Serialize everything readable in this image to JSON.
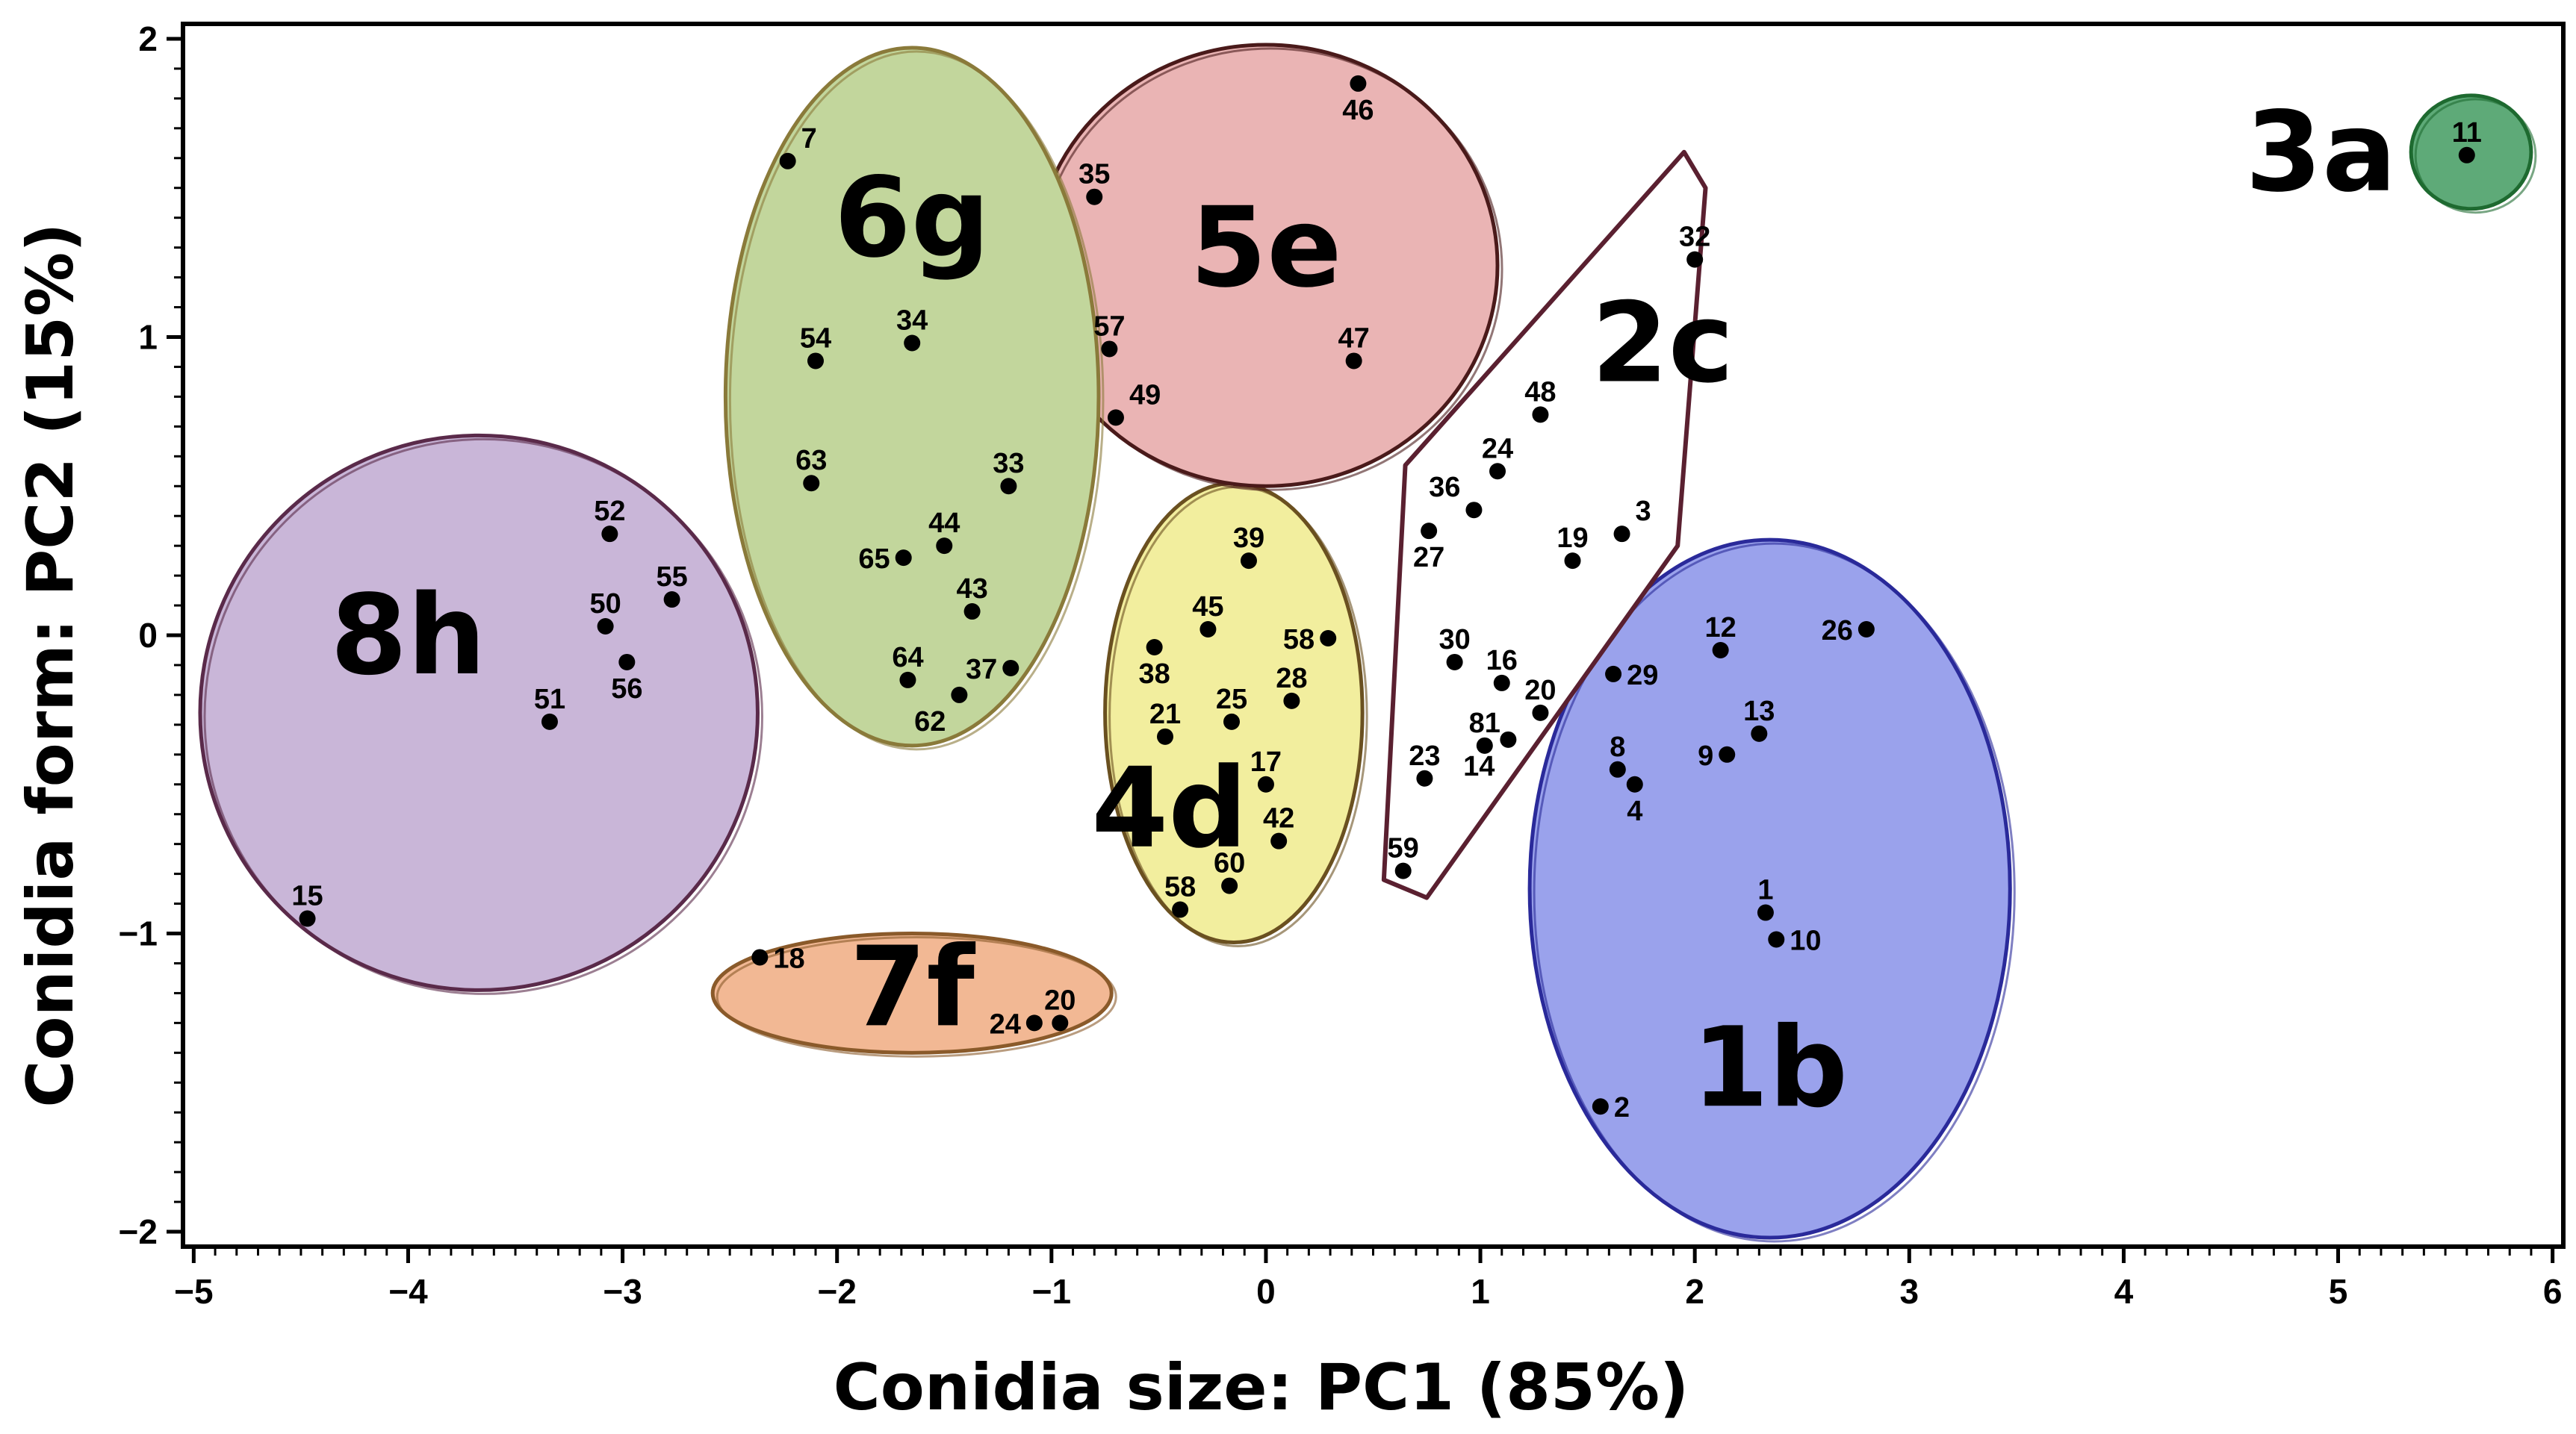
{
  "chart_data": {
    "type": "scatter",
    "title": "",
    "xlabel": "Conidia size: PC1 (85%)",
    "ylabel": "Conidia form: PC2 (15%)",
    "xlim": [
      -5.05,
      6.05
    ],
    "ylim": [
      -2.05,
      2.05
    ],
    "xticks": [
      -5,
      -4,
      -3,
      -2,
      -1,
      0,
      1,
      2,
      3,
      4,
      5,
      6
    ],
    "xtick_labels": [
      "−5",
      "−4",
      "−3",
      "−2",
      "−1",
      "0",
      "1",
      "2",
      "3",
      "4",
      "5",
      "6"
    ],
    "yticks": [
      -2,
      -1,
      0,
      1,
      2
    ],
    "ytick_labels": [
      "−2",
      "−1",
      "0",
      "1",
      "2"
    ],
    "grid": false,
    "groups": [
      {
        "name": "1b",
        "color": "#9aa2ec",
        "stroke": "#2a2a9a",
        "shape": "ellipse",
        "cx": 2.35,
        "cy": -0.85,
        "rx": 1.12,
        "ry": 1.17,
        "label_x": 2.35,
        "label_y": -1.45
      },
      {
        "name": "2c",
        "color": "#ffffff",
        "stroke": "#5a2030",
        "shape": "polygon",
        "vertices": [
          [
            0.65,
            0.57
          ],
          [
            1.95,
            1.62
          ],
          [
            2.05,
            1.5
          ],
          [
            1.92,
            0.3
          ],
          [
            0.75,
            -0.88
          ],
          [
            0.55,
            -0.82
          ]
        ],
        "label_x": 1.85,
        "label_y": 0.98
      },
      {
        "name": "3a",
        "color": "#5eaa78",
        "stroke": "#1e6a30",
        "shape": "ellipse",
        "cx": 5.62,
        "cy": 1.62,
        "rx": 0.28,
        "ry": 0.19,
        "label_x": 4.92,
        "label_y": 1.62
      },
      {
        "name": "4d",
        "color": "#f2ee9e",
        "stroke": "#6a5020",
        "shape": "ellipse",
        "cx": -0.15,
        "cy": -0.26,
        "rx": 0.6,
        "ry": 0.77,
        "label_x": -0.45,
        "label_y": -0.58
      },
      {
        "name": "5e",
        "color": "#eab4b4",
        "stroke": "#4a1a1a",
        "shape": "ellipse",
        "cx": 0.0,
        "cy": 1.24,
        "rx": 1.08,
        "ry": 0.74,
        "label_x": 0.0,
        "label_y": 1.3
      },
      {
        "name": "6g",
        "color": "#c2d69c",
        "stroke": "#8a7a3a",
        "shape": "ellipse",
        "cx": -1.65,
        "cy": 0.8,
        "rx": 0.87,
        "ry": 1.17,
        "label_x": -1.65,
        "label_y": 1.4
      },
      {
        "name": "7f",
        "color": "#f2b894",
        "stroke": "#8a5a2a",
        "shape": "ellipse",
        "cx": -1.65,
        "cy": -1.2,
        "rx": 0.93,
        "ry": 0.2,
        "label_x": -1.65,
        "label_y": -1.18
      },
      {
        "name": "8h",
        "color": "#c9b6d8",
        "stroke": "#5a2a4a",
        "shape": "ellipse",
        "cx": -3.67,
        "cy": -0.26,
        "rx": 1.3,
        "ry": 0.93,
        "label_x": -4.0,
        "label_y": -0.0
      }
    ],
    "points": [
      {
        "label": "11",
        "x": 5.6,
        "y": 1.61,
        "lx": "center",
        "ly": "above"
      },
      {
        "label": "32",
        "x": 2.0,
        "y": 1.26,
        "lx": "center",
        "ly": "above"
      },
      {
        "label": "48",
        "x": 1.28,
        "y": 0.74,
        "lx": "center",
        "ly": "above"
      },
      {
        "label": "24",
        "x": 1.08,
        "y": 0.55,
        "lx": "center",
        "ly": "above"
      },
      {
        "label": "36",
        "x": 0.97,
        "y": 0.42,
        "lx": "left",
        "ly": "above"
      },
      {
        "label": "27",
        "x": 0.76,
        "y": 0.35,
        "lx": "center",
        "ly": "below"
      },
      {
        "label": "19",
        "x": 1.43,
        "y": 0.25,
        "lx": "center",
        "ly": "above"
      },
      {
        "label": "3",
        "x": 1.66,
        "y": 0.34,
        "lx": "right",
        "ly": "above"
      },
      {
        "label": "30",
        "x": 0.88,
        "y": -0.09,
        "lx": "center",
        "ly": "above"
      },
      {
        "label": "16",
        "x": 1.1,
        "y": -0.16,
        "lx": "center",
        "ly": "above"
      },
      {
        "label": "20",
        "x": 1.28,
        "y": -0.26,
        "lx": "center",
        "ly": "above"
      },
      {
        "label": "81",
        "x": 1.02,
        "y": -0.37,
        "lx": "center",
        "ly": "above"
      },
      {
        "label": "14",
        "x": 1.13,
        "y": -0.35,
        "lx": "left",
        "ly": "below"
      },
      {
        "label": "23",
        "x": 0.74,
        "y": -0.48,
        "lx": "center",
        "ly": "above"
      },
      {
        "label": "59",
        "x": 0.64,
        "y": -0.79,
        "lx": "center",
        "ly": "above"
      },
      {
        "label": "12",
        "x": 2.12,
        "y": -0.05,
        "lx": "center",
        "ly": "above"
      },
      {
        "label": "26",
        "x": 2.8,
        "y": 0.02,
        "lx": "left",
        "ly": "middle"
      },
      {
        "label": "29",
        "x": 1.62,
        "y": -0.13,
        "lx": "right",
        "ly": "middle"
      },
      {
        "label": "13",
        "x": 2.3,
        "y": -0.33,
        "lx": "center",
        "ly": "above"
      },
      {
        "label": "9",
        "x": 2.15,
        "y": -0.4,
        "lx": "left",
        "ly": "middle"
      },
      {
        "label": "8",
        "x": 1.64,
        "y": -0.45,
        "lx": "center",
        "ly": "above"
      },
      {
        "label": "4",
        "x": 1.72,
        "y": -0.5,
        "lx": "center",
        "ly": "below"
      },
      {
        "label": "1",
        "x": 2.33,
        "y": -0.93,
        "lx": "center",
        "ly": "above"
      },
      {
        "label": "10",
        "x": 2.38,
        "y": -1.02,
        "lx": "right",
        "ly": "middle"
      },
      {
        "label": "2",
        "x": 1.56,
        "y": -1.58,
        "lx": "right",
        "ly": "middle"
      },
      {
        "label": "39",
        "x": -0.08,
        "y": 0.25,
        "lx": "center",
        "ly": "above"
      },
      {
        "label": "45",
        "x": -0.27,
        "y": 0.02,
        "lx": "center",
        "ly": "above"
      },
      {
        "label": "58",
        "x": 0.29,
        "y": -0.01,
        "lx": "left",
        "ly": "middle"
      },
      {
        "label": "38",
        "x": -0.52,
        "y": -0.04,
        "lx": "center",
        "ly": "below"
      },
      {
        "label": "28",
        "x": 0.12,
        "y": -0.22,
        "lx": "center",
        "ly": "above"
      },
      {
        "label": "25",
        "x": -0.16,
        "y": -0.29,
        "lx": "center",
        "ly": "above"
      },
      {
        "label": "21",
        "x": -0.47,
        "y": -0.34,
        "lx": "center",
        "ly": "above"
      },
      {
        "label": "17",
        "x": 0.0,
        "y": -0.5,
        "lx": "center",
        "ly": "above"
      },
      {
        "label": "42",
        "x": 0.06,
        "y": -0.69,
        "lx": "center",
        "ly": "above"
      },
      {
        "label": "60",
        "x": -0.17,
        "y": -0.84,
        "lx": "center",
        "ly": "above"
      },
      {
        "label": "58",
        "x": -0.4,
        "y": -0.92,
        "lx": "center",
        "ly": "above"
      },
      {
        "label": "46",
        "x": 0.43,
        "y": 1.85,
        "lx": "center",
        "ly": "below"
      },
      {
        "label": "35",
        "x": -0.8,
        "y": 1.47,
        "lx": "center",
        "ly": "above"
      },
      {
        "label": "57",
        "x": -0.73,
        "y": 0.96,
        "lx": "center",
        "ly": "above"
      },
      {
        "label": "47",
        "x": 0.41,
        "y": 0.92,
        "lx": "center",
        "ly": "above"
      },
      {
        "label": "49",
        "x": -0.7,
        "y": 0.73,
        "lx": "right",
        "ly": "above"
      },
      {
        "label": "7",
        "x": -2.23,
        "y": 1.59,
        "lx": "right",
        "ly": "above"
      },
      {
        "label": "54",
        "x": -2.1,
        "y": 0.92,
        "lx": "center",
        "ly": "above"
      },
      {
        "label": "34",
        "x": -1.65,
        "y": 0.98,
        "lx": "center",
        "ly": "above"
      },
      {
        "label": "63",
        "x": -2.12,
        "y": 0.51,
        "lx": "center",
        "ly": "above"
      },
      {
        "label": "33",
        "x": -1.2,
        "y": 0.5,
        "lx": "center",
        "ly": "above"
      },
      {
        "label": "44",
        "x": -1.5,
        "y": 0.3,
        "lx": "center",
        "ly": "above"
      },
      {
        "label": "65",
        "x": -1.69,
        "y": 0.26,
        "lx": "left",
        "ly": "middle"
      },
      {
        "label": "43",
        "x": -1.37,
        "y": 0.08,
        "lx": "center",
        "ly": "above"
      },
      {
        "label": "64",
        "x": -1.67,
        "y": -0.15,
        "lx": "center",
        "ly": "above"
      },
      {
        "label": "37",
        "x": -1.19,
        "y": -0.11,
        "lx": "left",
        "ly": "middle"
      },
      {
        "label": "62",
        "x": -1.43,
        "y": -0.2,
        "lx": "left",
        "ly": "below"
      },
      {
        "label": "52",
        "x": -3.06,
        "y": 0.34,
        "lx": "center",
        "ly": "above"
      },
      {
        "label": "55",
        "x": -2.77,
        "y": 0.12,
        "lx": "center",
        "ly": "above"
      },
      {
        "label": "50",
        "x": -3.08,
        "y": 0.03,
        "lx": "center",
        "ly": "above"
      },
      {
        "label": "56",
        "x": -2.98,
        "y": -0.09,
        "lx": "center",
        "ly": "below"
      },
      {
        "label": "51",
        "x": -3.34,
        "y": -0.29,
        "lx": "center",
        "ly": "above"
      },
      {
        "label": "15",
        "x": -4.47,
        "y": -0.95,
        "lx": "center",
        "ly": "above"
      },
      {
        "label": "18",
        "x": -2.36,
        "y": -1.08,
        "lx": "right",
        "ly": "middle"
      },
      {
        "label": "20",
        "x": -0.96,
        "y": -1.3,
        "lx": "center",
        "ly": "above"
      },
      {
        "label": "24",
        "x": -1.08,
        "y": -1.3,
        "lx": "left",
        "ly": "middle"
      }
    ]
  }
}
